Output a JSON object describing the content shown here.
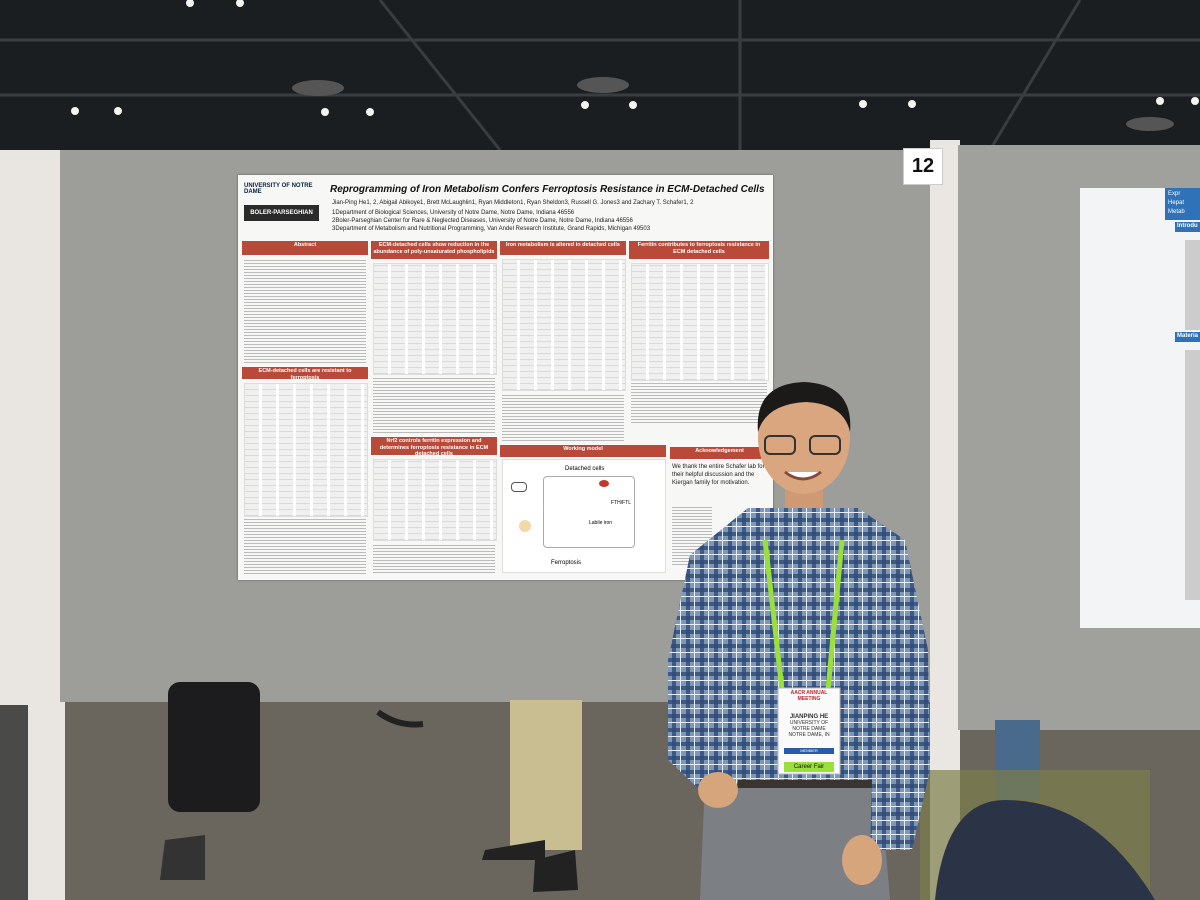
{
  "board_number": "12",
  "poster": {
    "logos": [
      "UNIVERSITY OF NOTRE DAME",
      "BOLER-PARSEGHIAN"
    ],
    "title": "Reprogramming of Iron Metabolism Confers Ferroptosis Resistance in  ECM-Detached Cells",
    "authors": "Jian-Ping He1, 2, Abigail Abikoye1, Brett McLaughlin1, Ryan Middleton1, Ryan Sheldon3, Russell G. Jones3 and Zachary T. Schafer1, 2",
    "affiliations": [
      "1Department of Biological Sciences, University of Notre Dame, Notre Dame, Indiana 46556",
      "2Boler-Parseghian Center for Rare & Neglected Diseases, University of Notre Dame, Notre Dame, Indiana 46556",
      "3Department of Metabolism and Nutritional Programming, Van Andel Research Institute, Grand Rapids, Michigan 49503"
    ],
    "sections": [
      "Abstract",
      "ECM-detached cells show reduction in the abundance of poly-unsaturated phospholipids",
      "Iron metabolism is altered in detached cells",
      "Ferritin contributes to ferroptosis resistance in ECM detached cells",
      "ECM-detached cells are resistant to ferroptosis",
      "Nrf2 controls ferritin expression and determines ferroptosis resistance in ECM detached cells",
      "Working model",
      "Acknowledgement"
    ],
    "working_model": [
      "Detached cells",
      "FTH/FTL",
      "Labile iron",
      "Ferroptosis"
    ],
    "acknowledgement": "We thank the entire Schafer lab for their helpful discussion and the Kiergan family for motivation."
  },
  "badge": {
    "event": "AACR ANNUAL MEETING",
    "name": "JIANPING HE",
    "affiliation": "UNIVERSITY OF NOTRE DAME",
    "location": "NOTRE DAME, IN",
    "type": "MEMBER",
    "tag": "Career Fair"
  },
  "side_poster": {
    "title": [
      "Expr",
      "Hepat",
      "Metab"
    ],
    "headings": [
      "Introdu",
      "Materia"
    ]
  }
}
